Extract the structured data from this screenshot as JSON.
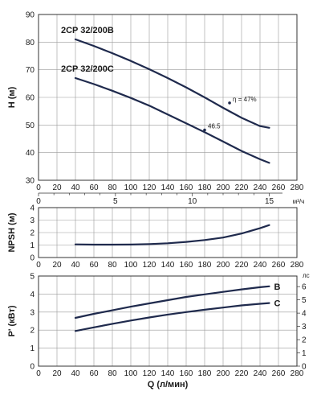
{
  "colors": {
    "curve": "#1f2a4d",
    "grid": "#9a9a9a",
    "frame": "#333333",
    "text": "#1a1a1a"
  },
  "chart_data": [
    {
      "id": "head",
      "type": "line",
      "ylabel": "H (м)",
      "ylim": [
        30,
        90
      ],
      "yticks": [
        30,
        40,
        50,
        60,
        70,
        80,
        90
      ],
      "xlim": [
        0,
        280
      ],
      "xticks": [
        0,
        20,
        40,
        60,
        80,
        100,
        120,
        140,
        160,
        180,
        200,
        220,
        240,
        260,
        280
      ],
      "secondary_x": {
        "unit": "м³/ч",
        "ticks": [
          0,
          5,
          10,
          15
        ],
        "per_primary": 16.6667
      },
      "series": [
        {
          "name": "2CP 32/200B",
          "x": [
            40,
            60,
            80,
            100,
            120,
            140,
            160,
            180,
            200,
            220,
            240,
            250
          ],
          "y": [
            81,
            78.6,
            76,
            73.2,
            70.2,
            67,
            63.6,
            60,
            56.2,
            52.6,
            49.6,
            49
          ]
        },
        {
          "name": "2CP 32/200C",
          "x": [
            40,
            60,
            80,
            100,
            120,
            140,
            160,
            180,
            200,
            220,
            240,
            250
          ],
          "y": [
            67,
            64.8,
            62.4,
            59.8,
            57,
            53.8,
            50.6,
            47.4,
            44,
            40.6,
            37.6,
            36.3
          ]
        }
      ],
      "annotations": [
        {
          "text": "η = 47%",
          "x": 207,
          "y": 58
        },
        {
          "text": "46.5",
          "x": 180,
          "y": 48.2
        }
      ]
    },
    {
      "id": "npsh",
      "type": "line",
      "ylabel": "NPSH (м)",
      "ylim": [
        0,
        4
      ],
      "yticks": [
        0,
        1,
        2,
        3,
        4
      ],
      "xlim": [
        0,
        280
      ],
      "xticks": [
        0,
        20,
        40,
        60,
        80,
        100,
        120,
        140,
        160,
        180,
        200,
        220,
        240,
        260,
        280
      ],
      "series": [
        {
          "name": "",
          "x": [
            40,
            60,
            80,
            100,
            120,
            140,
            160,
            180,
            200,
            220,
            240,
            250
          ],
          "y": [
            1.05,
            1.03,
            1.03,
            1.04,
            1.08,
            1.14,
            1.25,
            1.4,
            1.6,
            1.92,
            2.35,
            2.6
          ]
        }
      ]
    },
    {
      "id": "power",
      "type": "line",
      "ylabel": "P' (кВт)",
      "xlabel": "Q (л/мин)",
      "ylim": [
        0,
        5
      ],
      "yticks": [
        0,
        1,
        2,
        3,
        4,
        5
      ],
      "xlim": [
        0,
        280
      ],
      "xticks": [
        0,
        20,
        40,
        60,
        80,
        100,
        120,
        140,
        160,
        180,
        200,
        220,
        240,
        260,
        280
      ],
      "secondary_y": {
        "unit": "лс",
        "ticks": [
          0,
          1,
          2,
          3,
          4,
          5,
          6
        ],
        "per_primary": 1.36
      },
      "series": [
        {
          "name": "B",
          "x": [
            40,
            60,
            80,
            100,
            120,
            140,
            160,
            180,
            200,
            220,
            240,
            250
          ],
          "y": [
            2.68,
            2.9,
            3.1,
            3.3,
            3.48,
            3.66,
            3.84,
            3.98,
            4.12,
            4.26,
            4.38,
            4.43
          ]
        },
        {
          "name": "C",
          "x": [
            40,
            60,
            80,
            100,
            120,
            140,
            160,
            180,
            200,
            220,
            240,
            250
          ],
          "y": [
            1.95,
            2.15,
            2.35,
            2.53,
            2.7,
            2.86,
            3.0,
            3.13,
            3.25,
            3.37,
            3.46,
            3.5
          ]
        }
      ]
    }
  ]
}
